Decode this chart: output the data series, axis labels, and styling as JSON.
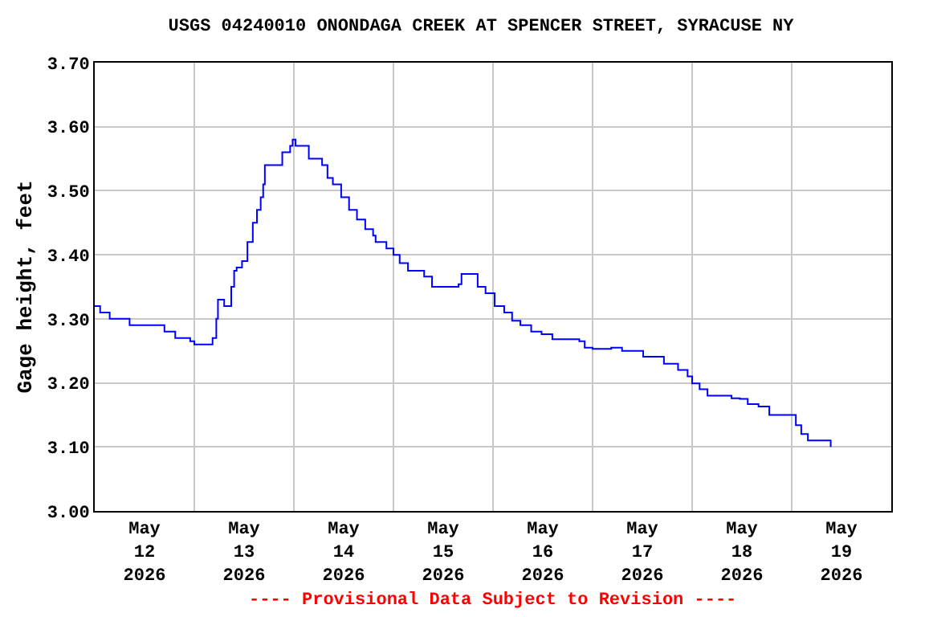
{
  "chart_data": {
    "type": "step",
    "title": "USGS 04240010 ONONDAGA CREEK AT SPENCER STREET, SYRACUSE NY",
    "ylabel": "Gage height, feet",
    "annotations": [
      "---- Provisional Data Subject to Revision ----"
    ],
    "x": [
      "2026-05-12T00:00",
      "2026-05-12T01:18",
      "2026-05-12T03:36",
      "2026-05-12T08:24",
      "2026-05-12T16:06",
      "2026-05-12T16:48",
      "2026-05-12T19:24",
      "2026-05-12T23:00",
      "2026-05-13T00:00",
      "2026-05-13T03:24",
      "2026-05-13T04:24",
      "2026-05-13T05:18",
      "2026-05-13T05:42",
      "2026-05-13T06:42",
      "2026-05-13T07:12",
      "2026-05-13T08:18",
      "2026-05-13T08:54",
      "2026-05-13T09:36",
      "2026-05-13T10:12",
      "2026-05-13T11:30",
      "2026-05-13T12:48",
      "2026-05-13T14:06",
      "2026-05-13T15:06",
      "2026-05-13T16:00",
      "2026-05-13T16:36",
      "2026-05-13T17:00",
      "2026-05-13T19:54",
      "2026-05-13T21:12",
      "2026-05-13T23:06",
      "2026-05-13T23:42",
      "2026-05-14T00:24",
      "2026-05-14T01:42",
      "2026-05-14T03:36",
      "2026-05-14T05:30",
      "2026-05-14T06:48",
      "2026-05-14T08:06",
      "2026-05-14T09:24",
      "2026-05-14T11:24",
      "2026-05-14T13:18",
      "2026-05-14T15:12",
      "2026-05-14T17:12",
      "2026-05-14T19:06",
      "2026-05-14T19:42",
      "2026-05-14T22:18",
      "2026-05-15T00:00",
      "2026-05-15T01:30",
      "2026-05-15T03:30",
      "2026-05-15T07:24",
      "2026-05-15T09:18",
      "2026-05-15T11:12",
      "2026-05-15T13:48",
      "2026-05-15T15:42",
      "2026-05-15T16:24",
      "2026-05-15T18:18",
      "2026-05-15T20:18",
      "2026-05-15T22:12",
      "2026-05-16T00:24",
      "2026-05-16T02:42",
      "2026-05-16T04:36",
      "2026-05-16T06:36",
      "2026-05-16T09:12",
      "2026-05-16T11:42",
      "2026-05-16T14:18",
      "2026-05-16T18:12",
      "2026-05-16T20:48",
      "2026-05-16T22:06",
      "2026-05-17T00:00",
      "2026-05-17T04:30",
      "2026-05-17T07:06",
      "2026-05-17T11:00",
      "2026-05-17T12:12",
      "2026-05-17T17:12",
      "2026-05-17T20:36",
      "2026-05-17T22:54",
      "2026-05-18T00:00",
      "2026-05-18T01:48",
      "2026-05-18T03:42",
      "2026-05-18T07:36",
      "2026-05-18T09:30",
      "2026-05-18T11:30",
      "2026-05-18T13:24",
      "2026-05-18T16:00",
      "2026-05-18T18:36",
      "2026-05-18T21:12",
      "2026-05-19T00:00",
      "2026-05-19T01:00",
      "2026-05-19T02:18",
      "2026-05-19T03:54",
      "2026-05-19T07:30",
      "2026-05-19T09:24"
    ],
    "series": [
      {
        "color": "#0000ff",
        "values": [
          3.32,
          3.31,
          3.3,
          3.29,
          3.29,
          3.28,
          3.27,
          3.265,
          3.26,
          3.26,
          3.27,
          3.3,
          3.33,
          3.33,
          3.32,
          3.32,
          3.35,
          3.375,
          3.38,
          3.39,
          3.42,
          3.45,
          3.47,
          3.49,
          3.51,
          3.54,
          3.54,
          3.56,
          3.57,
          3.58,
          3.57,
          3.57,
          3.55,
          3.55,
          3.54,
          3.52,
          3.51,
          3.49,
          3.47,
          3.455,
          3.44,
          3.43,
          3.42,
          3.41,
          3.4,
          3.387,
          3.375,
          3.366,
          3.35,
          3.35,
          3.35,
          3.354,
          3.37,
          3.37,
          3.35,
          3.34,
          3.32,
          3.31,
          3.297,
          3.29,
          3.28,
          3.276,
          3.268,
          3.268,
          3.265,
          3.255,
          3.253,
          3.255,
          3.25,
          3.25,
          3.241,
          3.23,
          3.22,
          3.21,
          3.199,
          3.19,
          3.18,
          3.18,
          3.176,
          3.175,
          3.167,
          3.163,
          3.15,
          3.15,
          3.15,
          3.134,
          3.12,
          3.11,
          3.11,
          3.1
        ]
      }
    ],
    "xlim": [
      "2026-05-12T00:00",
      "2026-05-20T00:00"
    ],
    "xticks": [
      {
        "value": "2026-05-12T12:00",
        "label": "May\n12\n2026"
      },
      {
        "value": "2026-05-13T12:00",
        "label": "May\n13\n2026"
      },
      {
        "value": "2026-05-14T12:00",
        "label": "May\n14\n2026"
      },
      {
        "value": "2026-05-15T12:00",
        "label": "May\n15\n2026"
      },
      {
        "value": "2026-05-16T12:00",
        "label": "May\n16\n2026"
      },
      {
        "value": "2026-05-17T12:00",
        "label": "May\n17\n2026"
      },
      {
        "value": "2026-05-18T12:00",
        "label": "May\n18\n2026"
      },
      {
        "value": "2026-05-19T12:00",
        "label": "May\n19\n2026"
      },
      {
        "value": "2026-05-13T00:00",
        "label": null
      },
      {
        "value": "2026-05-14T00:00",
        "label": null
      },
      {
        "value": "2026-05-15T00:00",
        "label": null
      },
      {
        "value": "2026-05-16T00:00",
        "label": null
      },
      {
        "value": "2026-05-17T00:00",
        "label": null
      },
      {
        "value": "2026-05-18T00:00",
        "label": null
      },
      {
        "value": "2026-05-19T00:00",
        "label": null
      }
    ],
    "ylim": [
      3.0,
      3.7
    ],
    "yticks": [
      {
        "value": 3.0,
        "label": "3.00"
      },
      {
        "value": 3.1,
        "label": "3.10"
      },
      {
        "value": 3.2,
        "label": "3.20"
      },
      {
        "value": 3.3,
        "label": "3.30"
      },
      {
        "value": 3.4,
        "label": "3.40"
      },
      {
        "value": 3.5,
        "label": "3.50"
      },
      {
        "value": 3.6,
        "label": "3.60"
      },
      {
        "value": 3.7,
        "label": "3.70"
      }
    ],
    "grid": true
  }
}
